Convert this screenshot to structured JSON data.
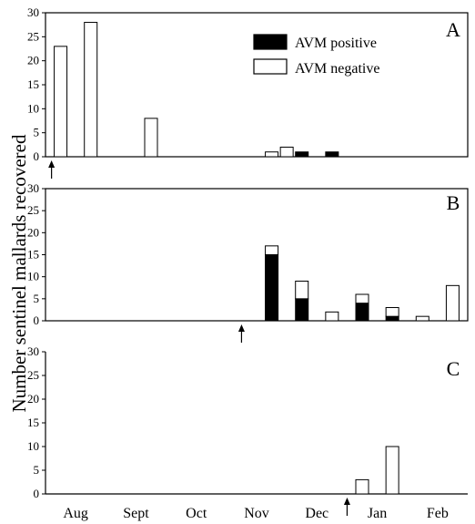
{
  "ylabel": "Number sentinel mallards recovered",
  "months": [
    "Aug",
    "Sept",
    "Oct",
    "Nov",
    "Dec",
    "Jan",
    "Feb"
  ],
  "legend": {
    "positive": "AVM positive",
    "negative": "AVM negative",
    "positive_color": "#000000",
    "negative_color": "#ffffff"
  },
  "chart_data": [
    {
      "type": "bar",
      "stacked": true,
      "panel": "A",
      "ylim": [
        0,
        30
      ],
      "yticks": [
        0,
        5,
        10,
        15,
        20,
        25,
        30
      ],
      "xlim": [
        0,
        14
      ],
      "release_marker_x": 0.2,
      "series": [
        {
          "name": "AVM positive",
          "color": "#000000",
          "points": [
            [
              8.5,
              1
            ],
            [
              9.5,
              1
            ]
          ]
        },
        {
          "name": "AVM negative",
          "color": "#ffffff",
          "points": [
            [
              0.5,
              23
            ],
            [
              1.5,
              28
            ],
            [
              3.5,
              8
            ],
            [
              7.5,
              1
            ],
            [
              8.0,
              2
            ]
          ]
        }
      ]
    },
    {
      "type": "bar",
      "stacked": true,
      "panel": "B",
      "ylim": [
        0,
        30
      ],
      "yticks": [
        0,
        5,
        10,
        15,
        20,
        25,
        30
      ],
      "xlim": [
        0,
        14
      ],
      "release_marker_x": 6.5,
      "series": [
        {
          "name": "AVM positive",
          "color": "#000000",
          "points": [
            [
              7.5,
              15
            ],
            [
              8.5,
              5
            ],
            [
              10.5,
              4
            ],
            [
              11.5,
              1
            ]
          ]
        },
        {
          "name": "AVM negative",
          "color": "#ffffff",
          "points": [
            [
              7.5,
              2
            ],
            [
              8.5,
              4
            ],
            [
              9.5,
              2
            ],
            [
              10.5,
              2
            ],
            [
              11.5,
              2
            ],
            [
              12.5,
              1
            ],
            [
              13.5,
              8
            ]
          ]
        }
      ]
    },
    {
      "type": "bar",
      "stacked": true,
      "panel": "C",
      "ylim": [
        0,
        30
      ],
      "yticks": [
        0,
        5,
        10,
        15,
        20,
        25,
        30
      ],
      "xlim": [
        0,
        14
      ],
      "release_marker_x": 10.0,
      "series": [
        {
          "name": "AVM positive",
          "color": "#000000",
          "points": []
        },
        {
          "name": "AVM negative",
          "color": "#ffffff",
          "points": [
            [
              10.5,
              3
            ],
            [
              11.5,
              10
            ]
          ]
        }
      ]
    }
  ]
}
